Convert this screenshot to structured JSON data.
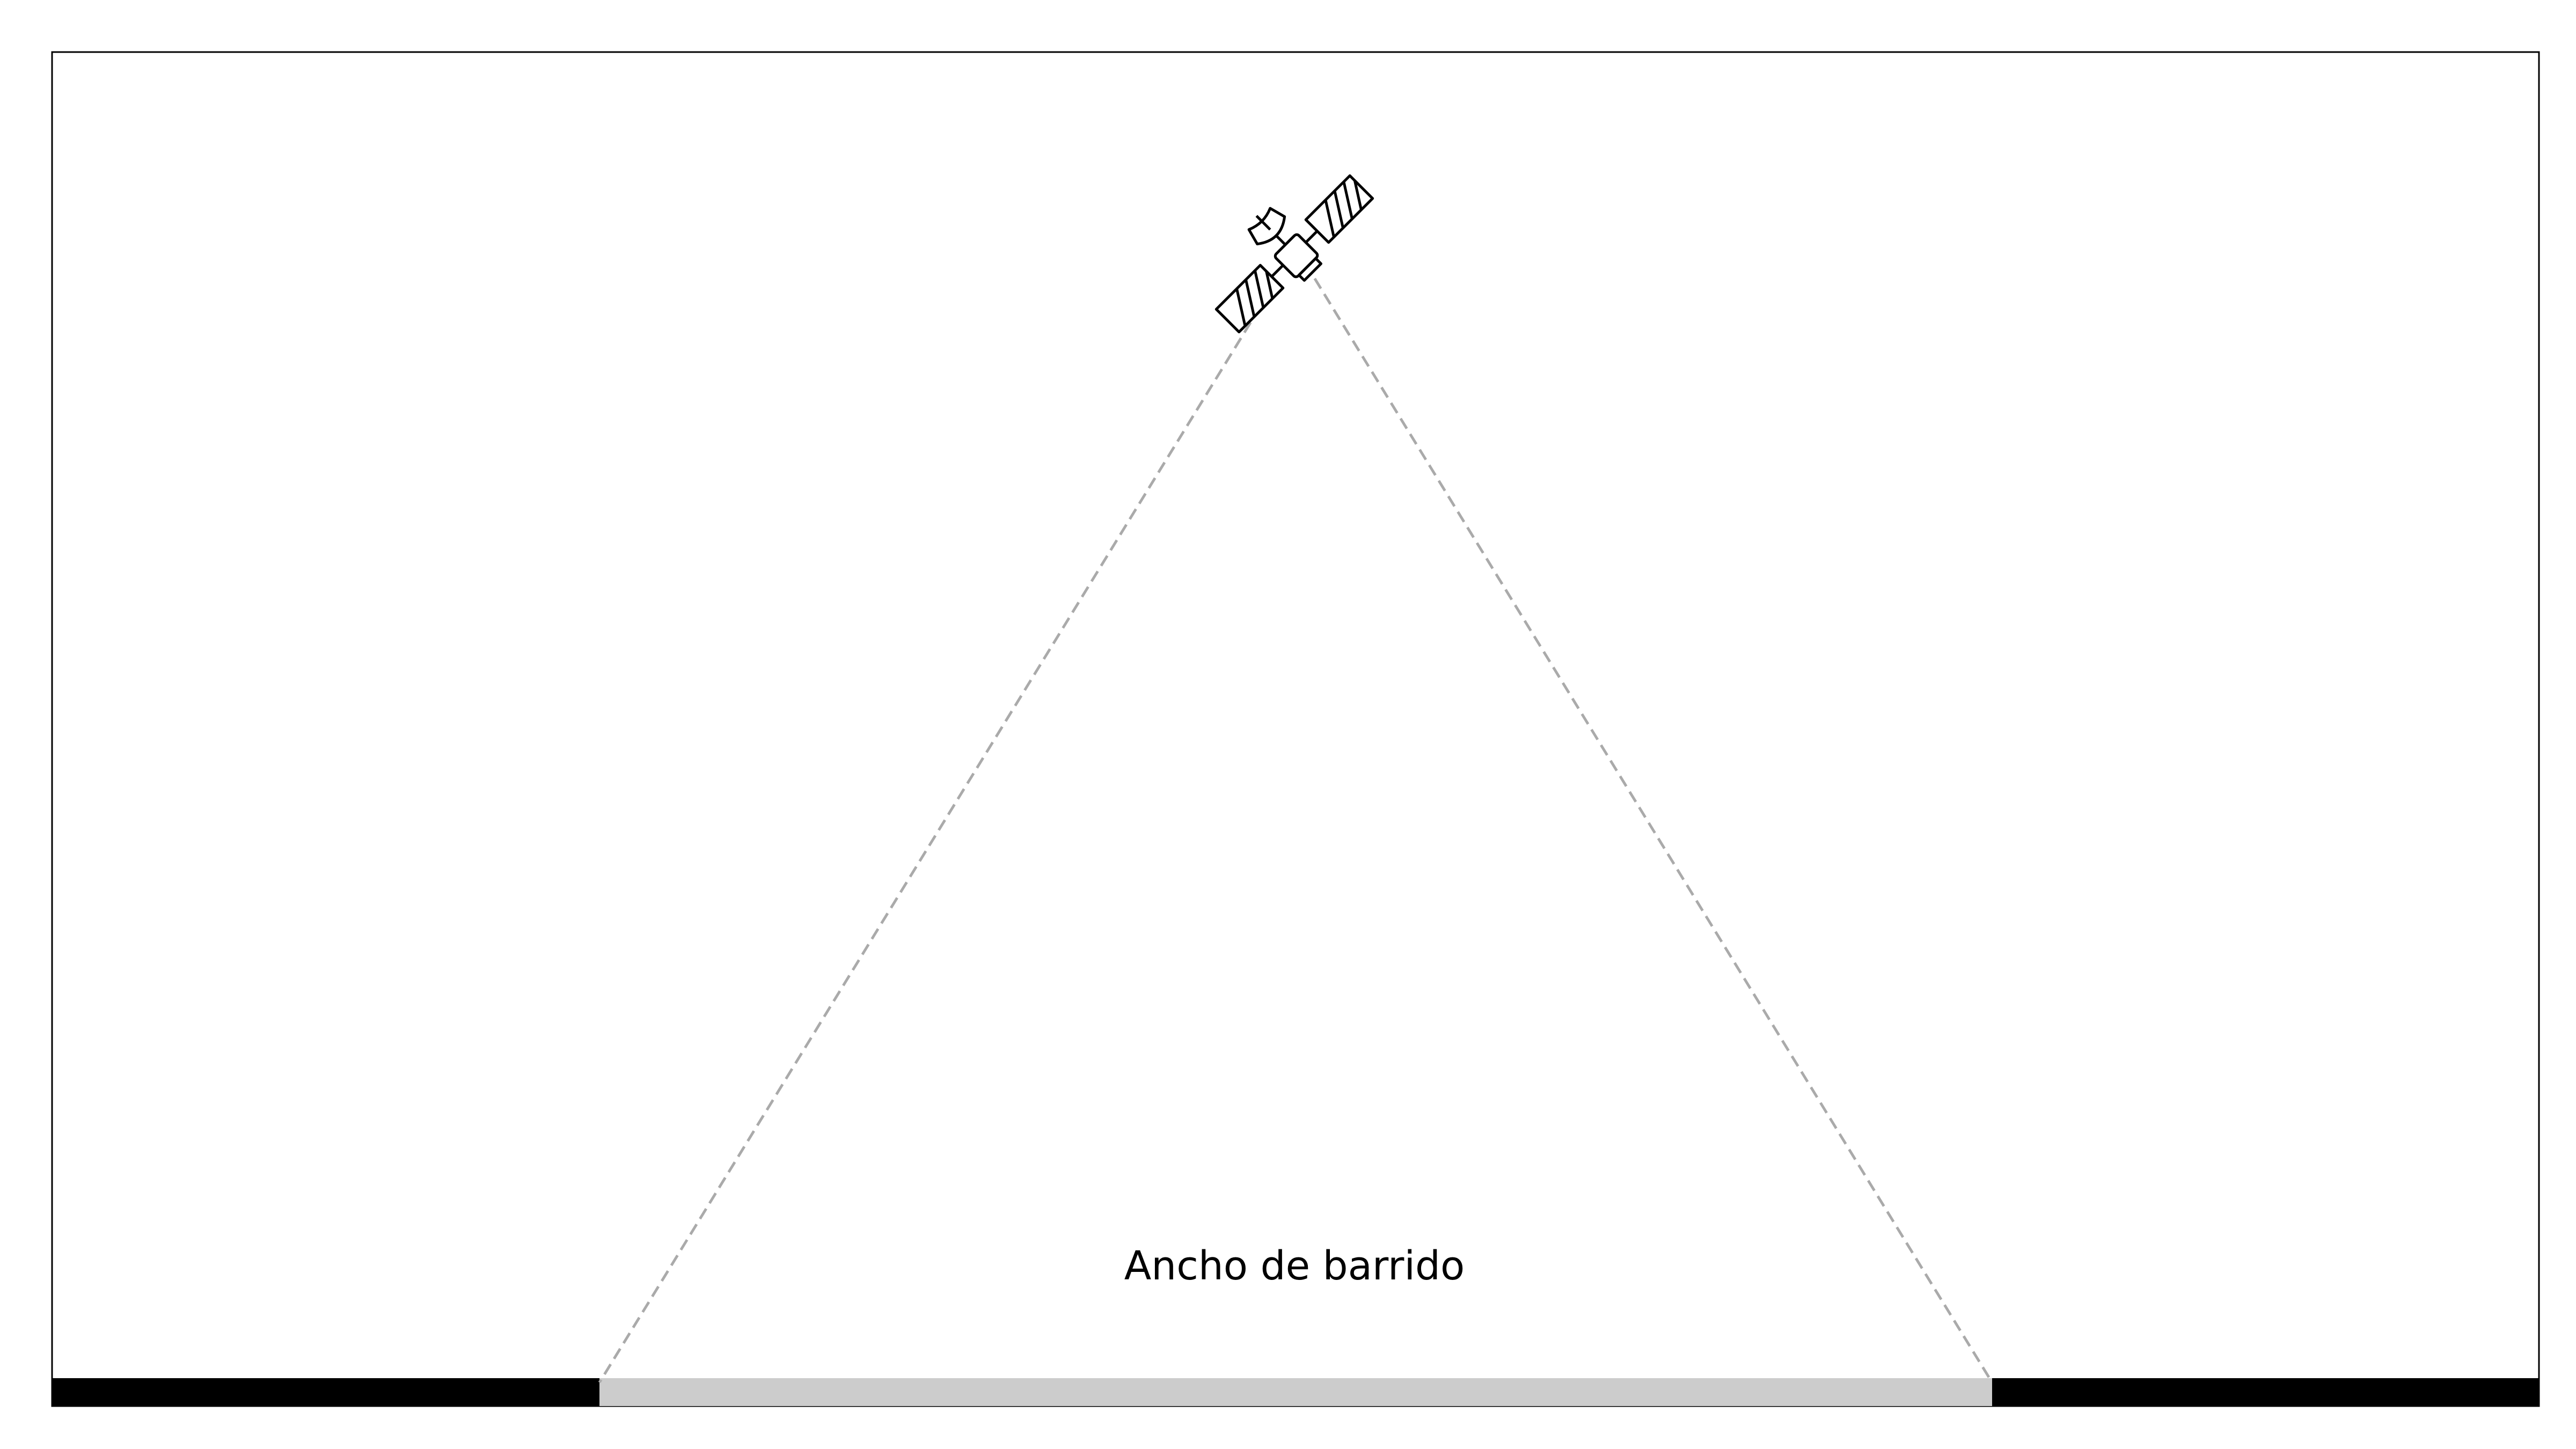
{
  "diagram": {
    "swath_label": "Ancho de barrido"
  },
  "colors": {
    "frame": "#000000",
    "ground": "#000000",
    "swath": "#cccccc",
    "beam": "#aaaaaa",
    "satellite_stroke": "#000000",
    "satellite_fill": "#ffffff"
  },
  "icons": {
    "satellite": "satellite-icon"
  }
}
